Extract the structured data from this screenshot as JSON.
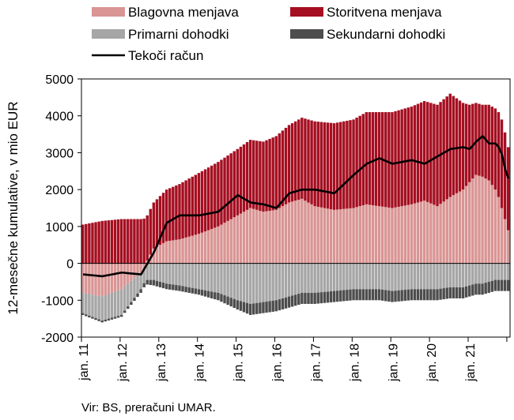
{
  "chart_data": {
    "type": "bar",
    "ylabel": "12-mesečne kumulative, v mio EUR",
    "ylim": [
      -2000,
      5000
    ],
    "yticks": [
      "5000",
      "4000",
      "3000",
      "2000",
      "1000",
      "0",
      "-1000",
      "-2000"
    ],
    "ytick_values": [
      5000,
      4000,
      3000,
      2000,
      1000,
      0,
      -1000,
      -2000
    ],
    "xtick_labels": [
      "jan. 11",
      "jan. 12",
      "jan. 13",
      "jan. 14",
      "jan. 15",
      "jan. 16",
      "jan. 17",
      "jan. 18",
      "jan. 19",
      "jan. 20",
      "jan. 21"
    ],
    "grid": false,
    "legend_position": "top",
    "colors": {
      "blagovna": "#d99594",
      "storitvena": "#a50f21",
      "primarni": "#a6a6a6",
      "sekundarni": "#4d4d4d",
      "tekoci": "#000000"
    },
    "legend": [
      {
        "key": "blagovna",
        "label": "Blagovna menjava",
        "kind": "bar"
      },
      {
        "key": "storitvena",
        "label": "Storitvena menjava",
        "kind": "bar"
      },
      {
        "key": "primarni",
        "label": "Primarni dohodki",
        "kind": "bar"
      },
      {
        "key": "sekundarni",
        "label": "Sekundarni dohodki",
        "kind": "bar"
      },
      {
        "key": "tekoci",
        "label": "Tekoči račun",
        "kind": "line"
      }
    ],
    "anchors": {
      "months": [
        0,
        6,
        12,
        18,
        22,
        26,
        30,
        36,
        42,
        48,
        52,
        56,
        60,
        64,
        68,
        72,
        78,
        84,
        88,
        92,
        96,
        102,
        106,
        110,
        114,
        118,
        120,
        122,
        124,
        126,
        128,
        129,
        130,
        131,
        132
      ],
      "blagovna": [
        -800,
        -900,
        -700,
        -250,
        400,
        600,
        650,
        800,
        1000,
        1300,
        1500,
        1400,
        1450,
        1650,
        1750,
        1550,
        1450,
        1500,
        1600,
        1550,
        1500,
        1600,
        1700,
        1550,
        1800,
        2000,
        2200,
        2400,
        2350,
        2250,
        2000,
        1800,
        1500,
        1200,
        900
      ],
      "storitvena": [
        1050,
        1150,
        1200,
        1200,
        1250,
        1400,
        1500,
        1650,
        1750,
        1800,
        1850,
        1900,
        2000,
        2100,
        2200,
        2300,
        2350,
        2400,
        2500,
        2550,
        2600,
        2650,
        2700,
        2750,
        2800,
        2350,
        2100,
        1950,
        1950,
        2050,
        2200,
        2300,
        2400,
        2350,
        2250
      ],
      "primarni": [
        -550,
        -650,
        -700,
        -450,
        -450,
        -550,
        -600,
        -700,
        -800,
        -1000,
        -1100,
        -1050,
        -1000,
        -900,
        -800,
        -800,
        -750,
        -700,
        -700,
        -700,
        -750,
        -700,
        -700,
        -700,
        -650,
        -650,
        -600,
        -550,
        -550,
        -500,
        -450,
        -450,
        -450,
        -450,
        -450
      ],
      "sekundarni": [
        -50,
        -50,
        -50,
        -100,
        -150,
        -150,
        -150,
        -150,
        -200,
        -250,
        -300,
        -300,
        -300,
        -300,
        -300,
        -300,
        -300,
        -300,
        -300,
        -300,
        -300,
        -300,
        -300,
        -300,
        -300,
        -300,
        -300,
        -300,
        -300,
        -300,
        -300,
        -300,
        -300,
        -300,
        -300
      ],
      "tekoci": [
        -300,
        -350,
        -250,
        -300,
        300,
        1100,
        1300,
        1300,
        1400,
        1850,
        1650,
        1600,
        1500,
        1900,
        2000,
        2000,
        1900,
        2400,
        2700,
        2850,
        2700,
        2800,
        2700,
        2900,
        3100,
        3150,
        3100,
        3300,
        3450,
        3250,
        3250,
        3150,
        2950,
        2550,
        2300
      ]
    }
  },
  "source": "Vir: BS, preračuni UMAR."
}
